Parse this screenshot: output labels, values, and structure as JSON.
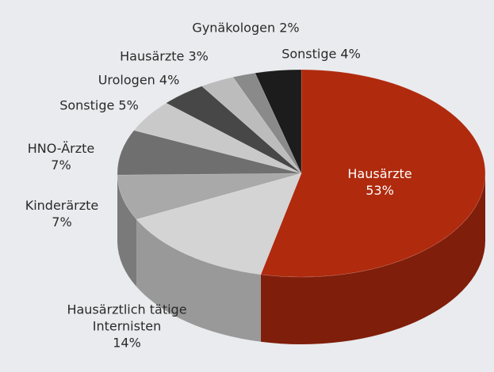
{
  "chart_data": {
    "type": "pie",
    "categories": [
      "Hausärzte",
      "Hausärztlich tätige Internisten",
      "Kinderärzte",
      "HNO-Ärzte",
      "Sonstige",
      "Urologen",
      "Hausärzte",
      "Gynäkologen",
      "Sonstige"
    ],
    "values": [
      53,
      14,
      7,
      7,
      5,
      4,
      3,
      2,
      4
    ],
    "value_labels": [
      "53%",
      "14%",
      "7%",
      "7%",
      "5%",
      "4%",
      "3%",
      "2%",
      "4%"
    ],
    "colors": [
      "#b02a0e",
      "#d4d4d4",
      "#a9a9a9",
      "#6f6f6f",
      "#c9c9c9",
      "#474747",
      "#bcbcbc",
      "#8a8a8a",
      "#1c1c1c"
    ]
  }
}
